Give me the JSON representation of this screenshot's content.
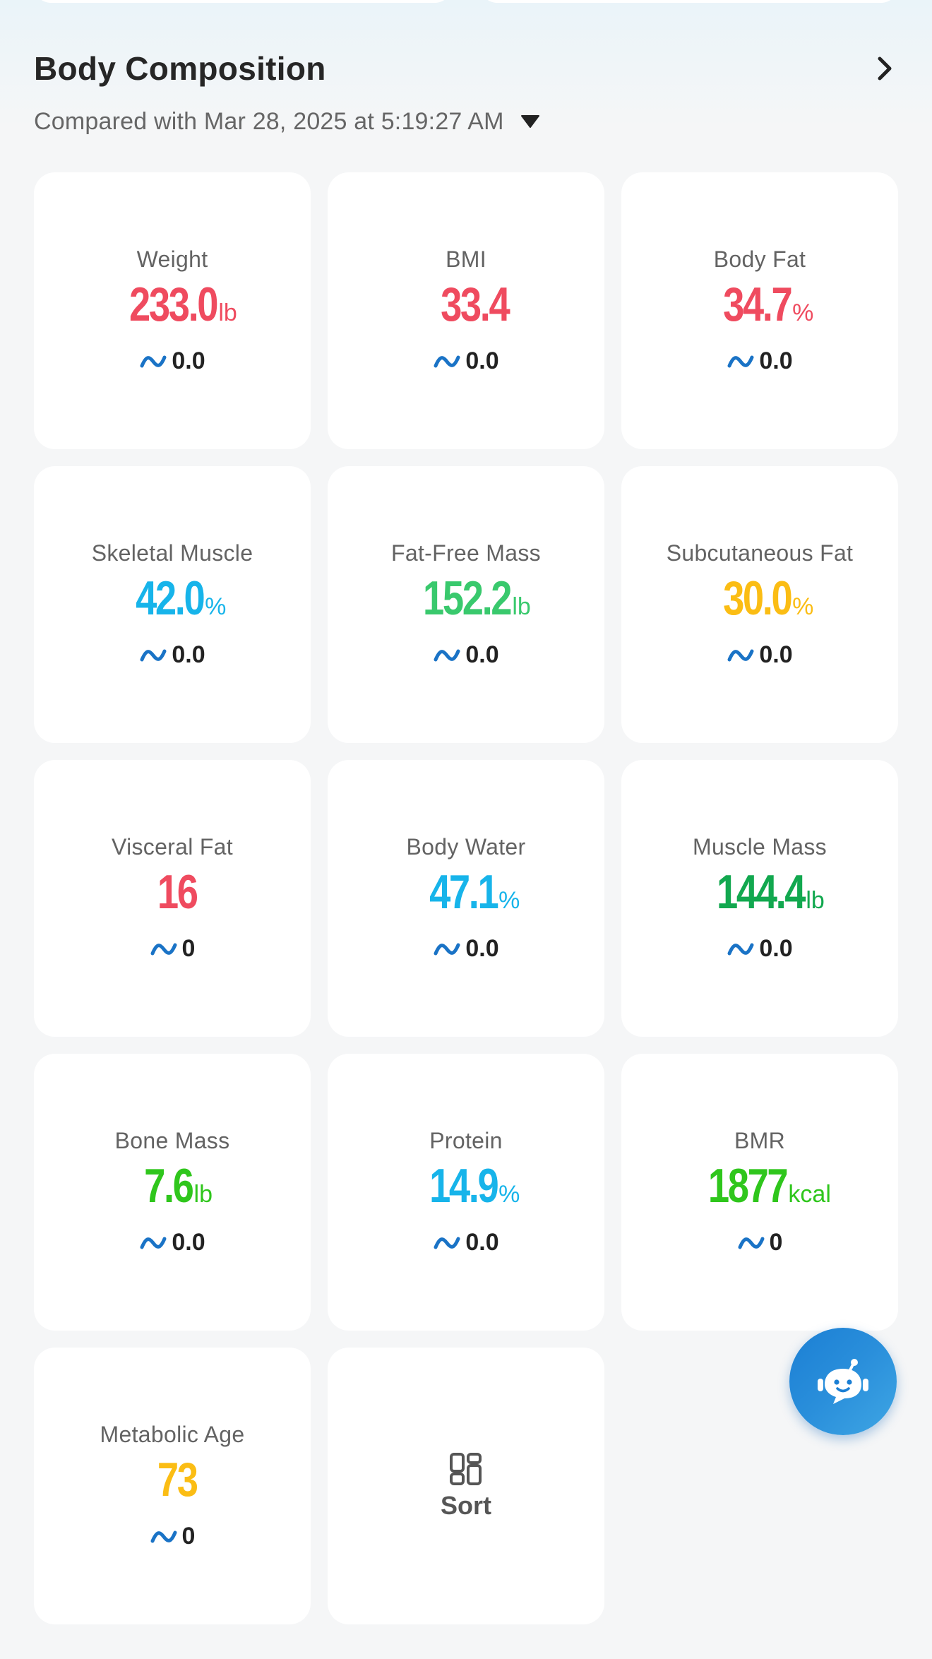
{
  "section": {
    "title": "Body Composition",
    "compare_text": "Compared with Mar 28, 2025 at 5:19:27 AM"
  },
  "metrics": [
    {
      "label": "Weight",
      "value": "233.0",
      "unit": "lb",
      "change": "0.0",
      "color": "#ef4b5f"
    },
    {
      "label": "BMI",
      "value": "33.4",
      "unit": "",
      "change": "0.0",
      "color": "#ef4b5f"
    },
    {
      "label": "Body Fat",
      "value": "34.7",
      "unit": "%",
      "change": "0.0",
      "color": "#ef4b5f"
    },
    {
      "label": "Skeletal Muscle",
      "value": "42.0",
      "unit": "%",
      "change": "0.0",
      "color": "#17b4ea"
    },
    {
      "label": "Fat-Free Mass",
      "value": "152.2",
      "unit": "lb",
      "change": "0.0",
      "color": "#39c96d"
    },
    {
      "label": "Subcutaneous Fat",
      "value": "30.0",
      "unit": "%",
      "change": "0.0",
      "color": "#fbbd14"
    },
    {
      "label": "Visceral Fat",
      "value": "16",
      "unit": "",
      "change": "0",
      "color": "#ef4b5f"
    },
    {
      "label": "Body Water",
      "value": "47.1",
      "unit": "%",
      "change": "0.0",
      "color": "#17b4ea"
    },
    {
      "label": "Muscle Mass",
      "value": "144.4",
      "unit": "lb",
      "change": "0.0",
      "color": "#12a84f"
    },
    {
      "label": "Bone Mass",
      "value": "7.6",
      "unit": "lb",
      "change": "0.0",
      "color": "#2fc61c"
    },
    {
      "label": "Protein",
      "value": "14.9",
      "unit": "%",
      "change": "0.0",
      "color": "#17b4ea"
    },
    {
      "label": "BMR",
      "value": "1877",
      "unit": "kcal",
      "change": "0",
      "color": "#2fc61c"
    },
    {
      "label": "Metabolic Age",
      "value": "73",
      "unit": "",
      "change": "0",
      "color": "#fbbd14"
    }
  ],
  "sort": {
    "label": "Sort",
    "icon": "grid-sort-icon"
  },
  "fab": {
    "icon": "robot-assistant-icon"
  },
  "colors": {
    "trend": "#1a73c6",
    "fab": "#1b7fd4"
  }
}
